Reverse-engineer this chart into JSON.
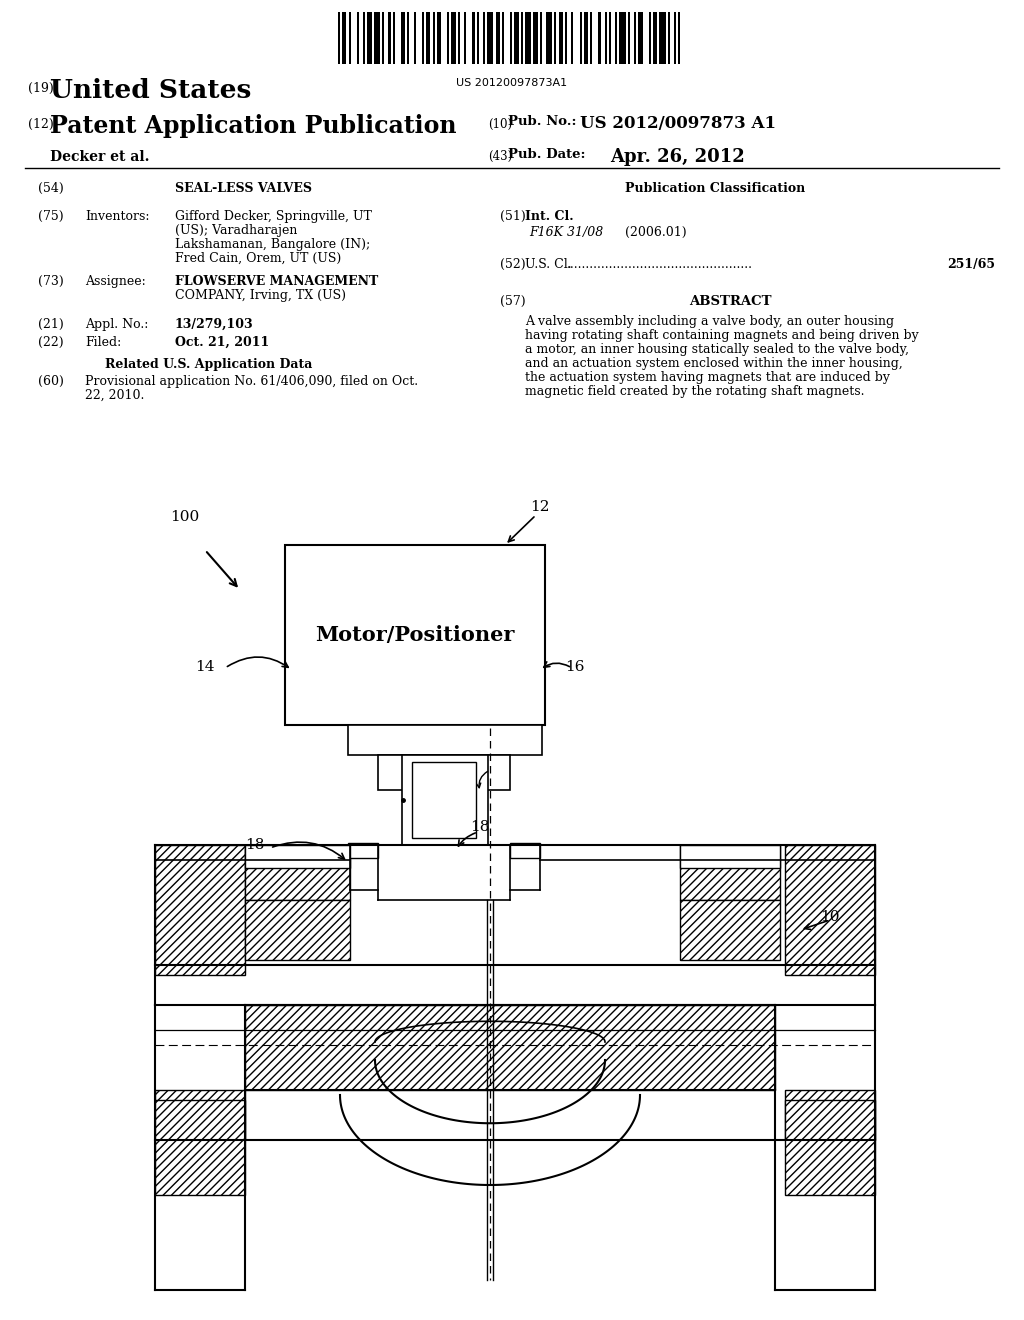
{
  "bg_color": "#ffffff",
  "barcode_text": "US 20120097873A1",
  "patent_number_label": "(19)",
  "patent_number_text": "United States",
  "pub_label": "(12)",
  "pub_text": "Patent Application Publication",
  "pub_number_label": "(10)",
  "pub_number_key": "Pub. No.:",
  "pub_number_val": "US 2012/0097873 A1",
  "inventor_label": "Decker et al.",
  "pub_date_label": "(43)",
  "pub_date_key": "Pub. Date:",
  "pub_date_val": "Apr. 26, 2012",
  "section54_label": "(54)",
  "section54_text": "SEAL-LESS VALVES",
  "section75_label": "(75)",
  "section75_key": "Inventors:",
  "section75_val_line1": "Gifford Decker, Springville, UT",
  "section75_val_line2": "(US); Varadharajen",
  "section75_val_line3": "Lakshamanan, Bangalore (IN);",
  "section75_val_line4": "Fred Cain, Orem, UT (US)",
  "section73_label": "(73)",
  "section73_key": "Assignee:",
  "section73_val_line1": "FLOWSERVE MANAGEMENT",
  "section73_val_line2": "COMPANY, Irving, TX (US)",
  "section21_label": "(21)",
  "section21_key": "Appl. No.:",
  "section21_val": "13/279,103",
  "section22_label": "(22)",
  "section22_key": "Filed:",
  "section22_val": "Oct. 21, 2011",
  "related_heading": "Related U.S. Application Data",
  "section60_label": "(60)",
  "section60_val_line1": "Provisional application No. 61/406,090, filed on Oct.",
  "section60_val_line2": "22, 2010.",
  "pub_class_heading": "Publication Classification",
  "section51_label": "(51)",
  "section51_key": "Int. Cl.",
  "section51_class": "F16K 31/08",
  "section51_year": "(2006.01)",
  "section52_label": "(52)",
  "section52_key": "U.S. Cl.",
  "section52_val": "251/65",
  "section57_label": "(57)",
  "section57_heading": "ABSTRACT",
  "abstract_lines": [
    "A valve assembly including a valve body, an outer housing",
    "having rotating shaft containing magnets and being driven by",
    "a motor, an inner housing statically sealed to the valve body,",
    "and an actuation system enclosed within the inner housing,",
    "the actuation system having magnets that are induced by",
    "magnetic field created by the rotating shaft magnets."
  ],
  "diagram_label_100": "100",
  "diagram_label_12": "12",
  "diagram_label_14": "14",
  "diagram_label_16": "16",
  "diagram_label_10": "10",
  "diagram_label_18a": "18",
  "diagram_label_18b": "18",
  "diagram_motor_text": "Motor/Positioner"
}
